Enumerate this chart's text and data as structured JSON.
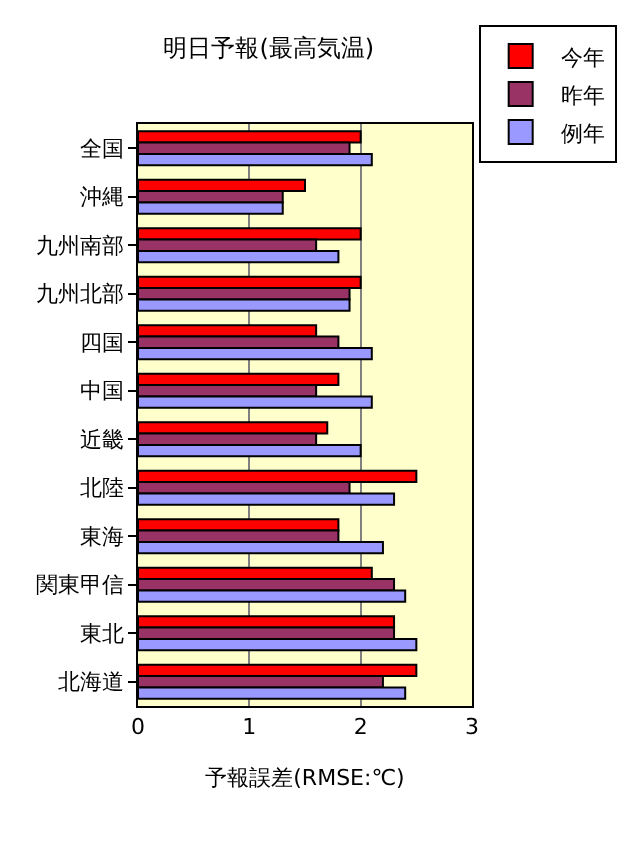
{
  "chart_data": {
    "type": "bar",
    "orientation": "horizontal",
    "title": "明日予報(最高気温)",
    "xlabel": "予報誤差(RMSE:℃)",
    "categories": [
      "全国",
      "沖縄",
      "九州南部",
      "九州北部",
      "四国",
      "中国",
      "近畿",
      "北陸",
      "東海",
      "関東甲信",
      "東北",
      "北海道"
    ],
    "series": [
      {
        "name": "今年",
        "color": "#ff0000",
        "values": [
          2.0,
          1.5,
          2.0,
          2.0,
          1.6,
          1.8,
          1.7,
          2.5,
          1.8,
          2.1,
          2.3,
          2.5
        ]
      },
      {
        "name": "昨年",
        "color": "#993366",
        "values": [
          1.9,
          1.3,
          1.6,
          1.9,
          1.8,
          1.6,
          1.6,
          1.9,
          1.8,
          2.3,
          2.3,
          2.2
        ]
      },
      {
        "name": "例年",
        "color": "#9999ff",
        "values": [
          2.1,
          1.3,
          1.8,
          1.9,
          2.1,
          2.1,
          2.0,
          2.3,
          2.2,
          2.4,
          2.5,
          2.4
        ]
      }
    ],
    "xlim": [
      0,
      3
    ],
    "xticks": [
      0,
      1,
      2,
      3
    ],
    "grid": "x",
    "legend": "top right"
  }
}
